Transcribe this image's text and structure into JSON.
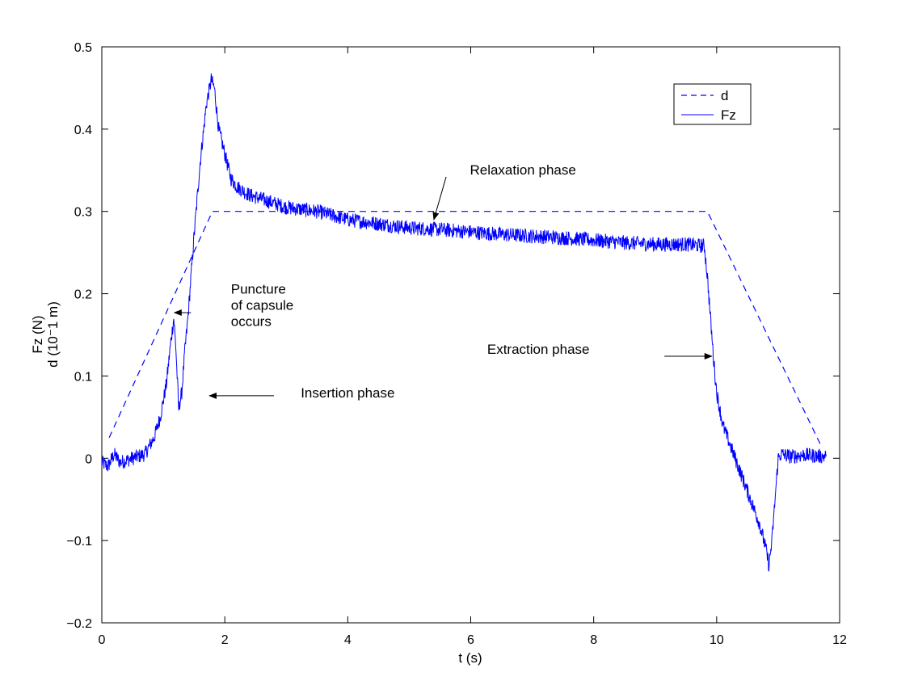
{
  "chart_data": {
    "type": "line",
    "title": "",
    "xlabel": "t (s)",
    "ylabel_lines": [
      "Fz (N)",
      "d (10⁻1 m)"
    ],
    "xlim": [
      0,
      12
    ],
    "ylim": [
      -0.2,
      0.5
    ],
    "x_ticks": [
      0,
      2,
      4,
      6,
      8,
      10,
      12
    ],
    "y_ticks": [
      -0.2,
      -0.1,
      0,
      0.1,
      0.2,
      0.3,
      0.4,
      0.5
    ],
    "x_tick_labels": [
      "0",
      "2",
      "4",
      "6",
      "8",
      "10",
      "12"
    ],
    "y_tick_labels": [
      "−0.2",
      "−0.1",
      "0",
      "0.1",
      "0.2",
      "0.3",
      "0.4",
      "0.5"
    ],
    "grid": false,
    "legend_position": "top-right",
    "legend": [
      {
        "label": "d",
        "style": "dashed"
      },
      {
        "label": "Fz",
        "style": "solid"
      }
    ],
    "series": [
      {
        "name": "d",
        "style": "dashed",
        "color": "#0000ff",
        "x": [
          0.12,
          1.8,
          9.85,
          11.7
        ],
        "y": [
          0.025,
          0.3,
          0.3,
          0.015
        ]
      },
      {
        "name": "Fz",
        "style": "solid",
        "color": "#0000ff",
        "noise": 0.009,
        "x": [
          0.0,
          0.1,
          0.2,
          0.3,
          0.5,
          0.7,
          0.85,
          0.95,
          1.05,
          1.12,
          1.17,
          1.2,
          1.25,
          1.3,
          1.35,
          1.4,
          1.5,
          1.6,
          1.7,
          1.78,
          1.83,
          1.9,
          2.0,
          2.1,
          2.2,
          2.4,
          2.6,
          2.8,
          3.0,
          3.5,
          4.0,
          4.5,
          5.0,
          5.5,
          6.0,
          6.5,
          7.0,
          7.5,
          8.0,
          8.5,
          9.0,
          9.5,
          9.8,
          9.85,
          9.9,
          9.95,
          10.0,
          10.1,
          10.2,
          10.3,
          10.4,
          10.5,
          10.6,
          10.7,
          10.8,
          10.85,
          10.9,
          10.95,
          11.0,
          11.05,
          11.2,
          11.4,
          11.6,
          11.78
        ],
        "y": [
          -0.005,
          -0.01,
          0.005,
          -0.005,
          0.0,
          0.005,
          0.025,
          0.05,
          0.09,
          0.14,
          0.17,
          0.14,
          0.06,
          0.08,
          0.13,
          0.17,
          0.27,
          0.36,
          0.43,
          0.46,
          0.45,
          0.4,
          0.37,
          0.34,
          0.33,
          0.32,
          0.315,
          0.31,
          0.305,
          0.3,
          0.29,
          0.285,
          0.28,
          0.278,
          0.275,
          0.272,
          0.27,
          0.268,
          0.265,
          0.262,
          0.26,
          0.26,
          0.258,
          0.22,
          0.17,
          0.12,
          0.08,
          0.04,
          0.02,
          0.0,
          -0.02,
          -0.04,
          -0.06,
          -0.08,
          -0.11,
          -0.13,
          -0.1,
          -0.05,
          0.0,
          0.005,
          0.002,
          0.004,
          0.003,
          0.002
        ]
      }
    ],
    "annotations": [
      {
        "id": "relaxation",
        "lines": [
          "Relaxation phase"
        ],
        "text_at": [
          6.85,
          0.345
        ],
        "arrow_from": [
          5.6,
          0.342
        ],
        "arrow_to": [
          5.4,
          0.29
        ]
      },
      {
        "id": "puncture",
        "lines": [
          "Puncture",
          "of capsule",
          "occurs"
        ],
        "text_at": [
          2.1,
          0.2
        ],
        "arrow_from": [
          1.45,
          0.177
        ],
        "arrow_to": [
          1.18,
          0.177
        ]
      },
      {
        "id": "insertion",
        "lines": [
          "Insertion phase"
        ],
        "text_at": [
          4.0,
          0.074
        ],
        "arrow_from": [
          2.8,
          0.076
        ],
        "arrow_to": [
          1.75,
          0.076
        ]
      },
      {
        "id": "extraction",
        "lines": [
          "Extraction phase"
        ],
        "text_at": [
          7.1,
          0.127
        ],
        "arrow_from": [
          9.15,
          0.124
        ],
        "arrow_to": [
          9.92,
          0.124
        ]
      }
    ]
  }
}
